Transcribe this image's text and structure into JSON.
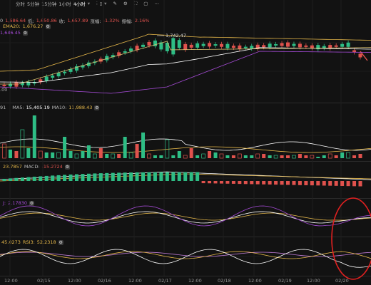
{
  "toolbar": {
    "tabs": [
      "分时",
      "5分钟",
      "15分钟",
      "1小时",
      "4小时"
    ],
    "active_tab_index": 4
  },
  "info_line": {
    "open_partial": "0",
    "open_value": "1,686.64",
    "low_label": "低:",
    "low_value": "1,650.86",
    "close_label": "收:",
    "close_value": "1,657.89",
    "change_label": "涨幅:",
    "change_value": "-1.32%",
    "amp_label": "振幅:",
    "amp_value": "2.16%"
  },
  "ema_line": {
    "label": "EMA20:",
    "value": "1,676.27"
  },
  "ema_line2": {
    "value": "1,646.45"
  },
  "price_annotation": {
    "text": "1,742.47"
  },
  "price_low_label": ".00",
  "volume_header": {
    "vol_partial": "91",
    "ma5_label": "MA5:",
    "ma5_value": "15,405.19",
    "ma10_label": "MA10:",
    "ma10_value": "11,988.43"
  },
  "macd_header": {
    "dif_partial": "23.7857",
    "macd_label": "MACD:",
    "macd_value": "-15.2724"
  },
  "kdj_header": {
    "j_label": "J:",
    "j_value": "2.17830"
  },
  "rsi_header": {
    "rsi2_partial": "45.0273",
    "rsi3_label": "RSI3:",
    "rsi3_value": "52.2318"
  },
  "x_axis": {
    "ticks": [
      "12:00",
      "02/15",
      "12:00",
      "02/16",
      "12:00",
      "02/17",
      "12:00",
      "02/18",
      "12:00",
      "02/19",
      "12:00",
      "02/20"
    ]
  },
  "colors": {
    "up": "#2ebd85",
    "down": "#e0524d",
    "ema_yellow": "#e6b84a",
    "white_line": "#ffffff",
    "purple_line": "#a54bd6",
    "highlight_circle": "#e02020"
  },
  "chart_data": {
    "type": "candlestick",
    "x_ticks": [
      "12:00",
      "02/15",
      "12:00",
      "02/16",
      "12:00",
      "02/17",
      "12:00",
      "02/18",
      "12:00",
      "02/19",
      "12:00",
      "02/20"
    ],
    "price_label": "1,742.47",
    "candles_direction": [
      "down",
      "up",
      "down",
      "up",
      "up",
      "up",
      "down",
      "up",
      "up",
      "up",
      "up",
      "up",
      "up",
      "up",
      "up",
      "up",
      "down",
      "up",
      "up",
      "down",
      "up",
      "up",
      "down",
      "up",
      "down",
      "up",
      "up",
      "up",
      "up",
      "up",
      "down",
      "down",
      "up",
      "up",
      "down",
      "up",
      "down",
      "up",
      "down",
      "down",
      "up",
      "up",
      "down",
      "down",
      "up",
      "up",
      "down",
      "down",
      "up",
      "down",
      "down",
      "down",
      "up",
      "up",
      "down",
      "down",
      "up",
      "up",
      "down",
      "down"
    ]
  }
}
